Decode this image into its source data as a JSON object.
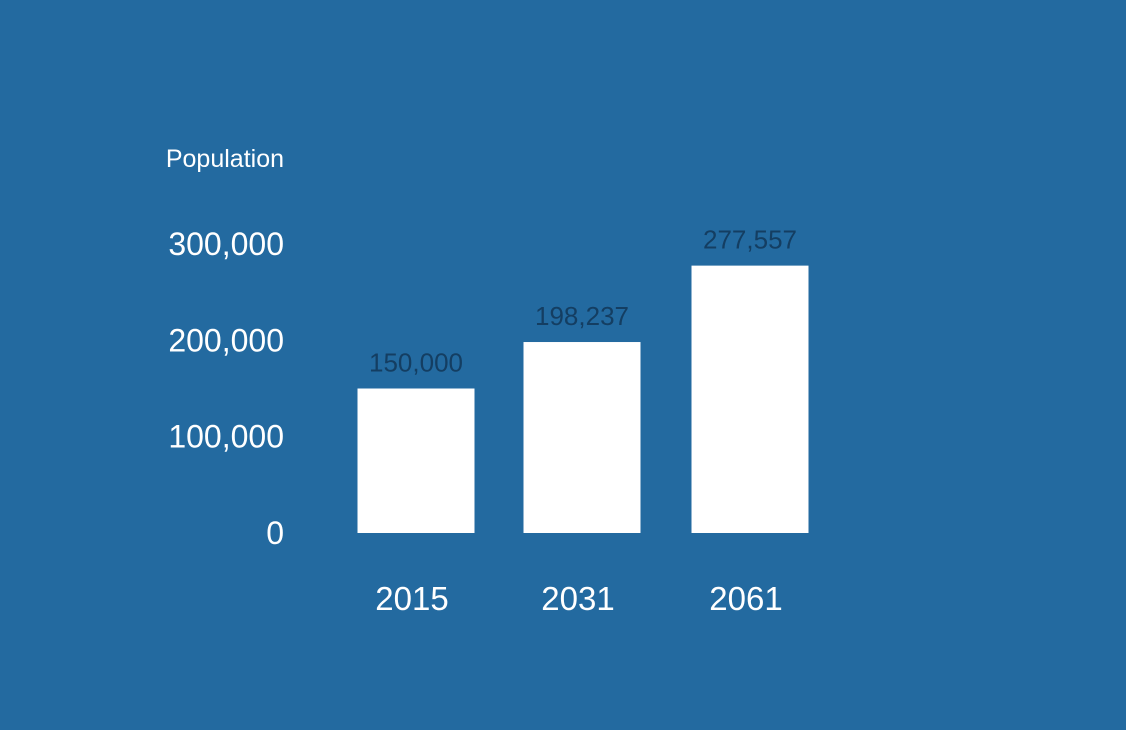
{
  "colors": {
    "background": "#236aa0",
    "bar": "#ffffff",
    "axis_text": "#ffffff",
    "value_label": "#143e62"
  },
  "chart_data": {
    "type": "bar",
    "title": "",
    "xlabel": "",
    "ylabel": "Population",
    "categories": [
      "2015",
      "2031",
      "2061"
    ],
    "values": [
      150000,
      198237,
      277557
    ],
    "value_labels": [
      "150,000",
      "198,237",
      "277,557"
    ],
    "yticks": [
      0,
      100000,
      200000,
      300000
    ],
    "ytick_labels": [
      "0",
      "100,000",
      "200,000",
      "300,000"
    ],
    "ylim": [
      0,
      300000
    ],
    "grid": false,
    "legend": "none"
  }
}
